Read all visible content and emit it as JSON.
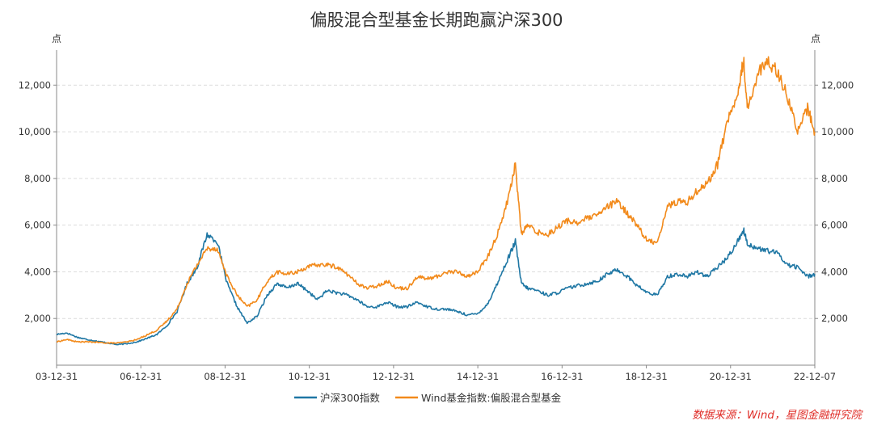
{
  "chart_data": {
    "type": "line",
    "title": "偏股混合型基金长期跑赢沪深300",
    "left_unit": "点",
    "right_unit": "点",
    "y_ticks": [
      "2,000",
      "4,000",
      "6,000",
      "8,000",
      "10,000",
      "12,000"
    ],
    "x_ticks": [
      "03-12-31",
      "06-12-31",
      "08-12-31",
      "10-12-31",
      "12-12-31",
      "14-12-31",
      "16-12-31",
      "18-12-31",
      "20-12-31",
      "22-12-07"
    ],
    "ylim": [
      0,
      13500
    ],
    "grid": true,
    "legend_position": "bottom",
    "source": "数据来源：Wind，星图金融研究院",
    "x": [
      2003.99,
      2004.25,
      2004.5,
      2004.75,
      2005.0,
      2005.25,
      2005.5,
      2005.75,
      2006.0,
      2006.25,
      2006.5,
      2006.75,
      2007.0,
      2007.25,
      2007.5,
      2007.75,
      2008.0,
      2008.25,
      2008.5,
      2008.75,
      2009.0,
      2009.25,
      2009.5,
      2009.75,
      2010.0,
      2010.25,
      2010.5,
      2010.75,
      2011.0,
      2011.25,
      2011.5,
      2011.75,
      2012.0,
      2012.25,
      2012.5,
      2012.75,
      2013.0,
      2013.25,
      2013.5,
      2013.75,
      2014.0,
      2014.25,
      2014.5,
      2014.75,
      2015.0,
      2015.25,
      2015.45,
      2015.6,
      2015.75,
      2016.0,
      2016.25,
      2016.5,
      2016.75,
      2017.0,
      2017.25,
      2017.5,
      2017.75,
      2018.0,
      2018.25,
      2018.5,
      2018.75,
      2019.0,
      2019.25,
      2019.5,
      2019.75,
      2020.0,
      2020.25,
      2020.5,
      2020.75,
      2021.0,
      2021.15,
      2021.25,
      2021.5,
      2021.75,
      2022.0,
      2022.25,
      2022.5,
      2022.75,
      2022.93
    ],
    "series": [
      {
        "name": "沪深300指数",
        "color": "#1f77a4",
        "values": [
          1320,
          1380,
          1200,
          1100,
          1030,
          960,
          880,
          920,
          1000,
          1150,
          1320,
          1700,
          2300,
          3500,
          4200,
          5600,
          5300,
          3500,
          2500,
          1800,
          2100,
          3000,
          3500,
          3300,
          3500,
          3200,
          2800,
          3200,
          3100,
          3000,
          2800,
          2500,
          2500,
          2700,
          2500,
          2500,
          2700,
          2500,
          2400,
          2400,
          2300,
          2150,
          2200,
          2600,
          3500,
          4500,
          5300,
          3500,
          3300,
          3200,
          3000,
          3100,
          3300,
          3400,
          3500,
          3600,
          3900,
          4100,
          3800,
          3400,
          3100,
          3000,
          3800,
          3900,
          3800,
          4000,
          3800,
          4200,
          4600,
          5300,
          5800,
          5200,
          5000,
          4900,
          4800,
          4300,
          4200,
          3800,
          3900
        ]
      },
      {
        "name": "Wind基金指数:偏股混合型基金",
        "color": "#f28a1b",
        "values": [
          1000,
          1100,
          1000,
          1000,
          980,
          950,
          950,
          1000,
          1100,
          1300,
          1500,
          1900,
          2400,
          3500,
          4300,
          5000,
          5000,
          3800,
          3000,
          2500,
          2800,
          3600,
          4000,
          3900,
          4000,
          4200,
          4300,
          4300,
          4200,
          3900,
          3500,
          3300,
          3400,
          3600,
          3300,
          3300,
          3800,
          3700,
          3800,
          4000,
          4000,
          3800,
          4000,
          4600,
          5600,
          7000,
          8600,
          5600,
          6000,
          5700,
          5600,
          5900,
          6200,
          6100,
          6300,
          6400,
          6800,
          7000,
          6500,
          6000,
          5300,
          5300,
          6800,
          7000,
          7000,
          7500,
          7800,
          8600,
          10500,
          11500,
          13100,
          11000,
          12500,
          13000,
          12600,
          11500,
          10000,
          11000,
          10000
        ]
      }
    ]
  }
}
